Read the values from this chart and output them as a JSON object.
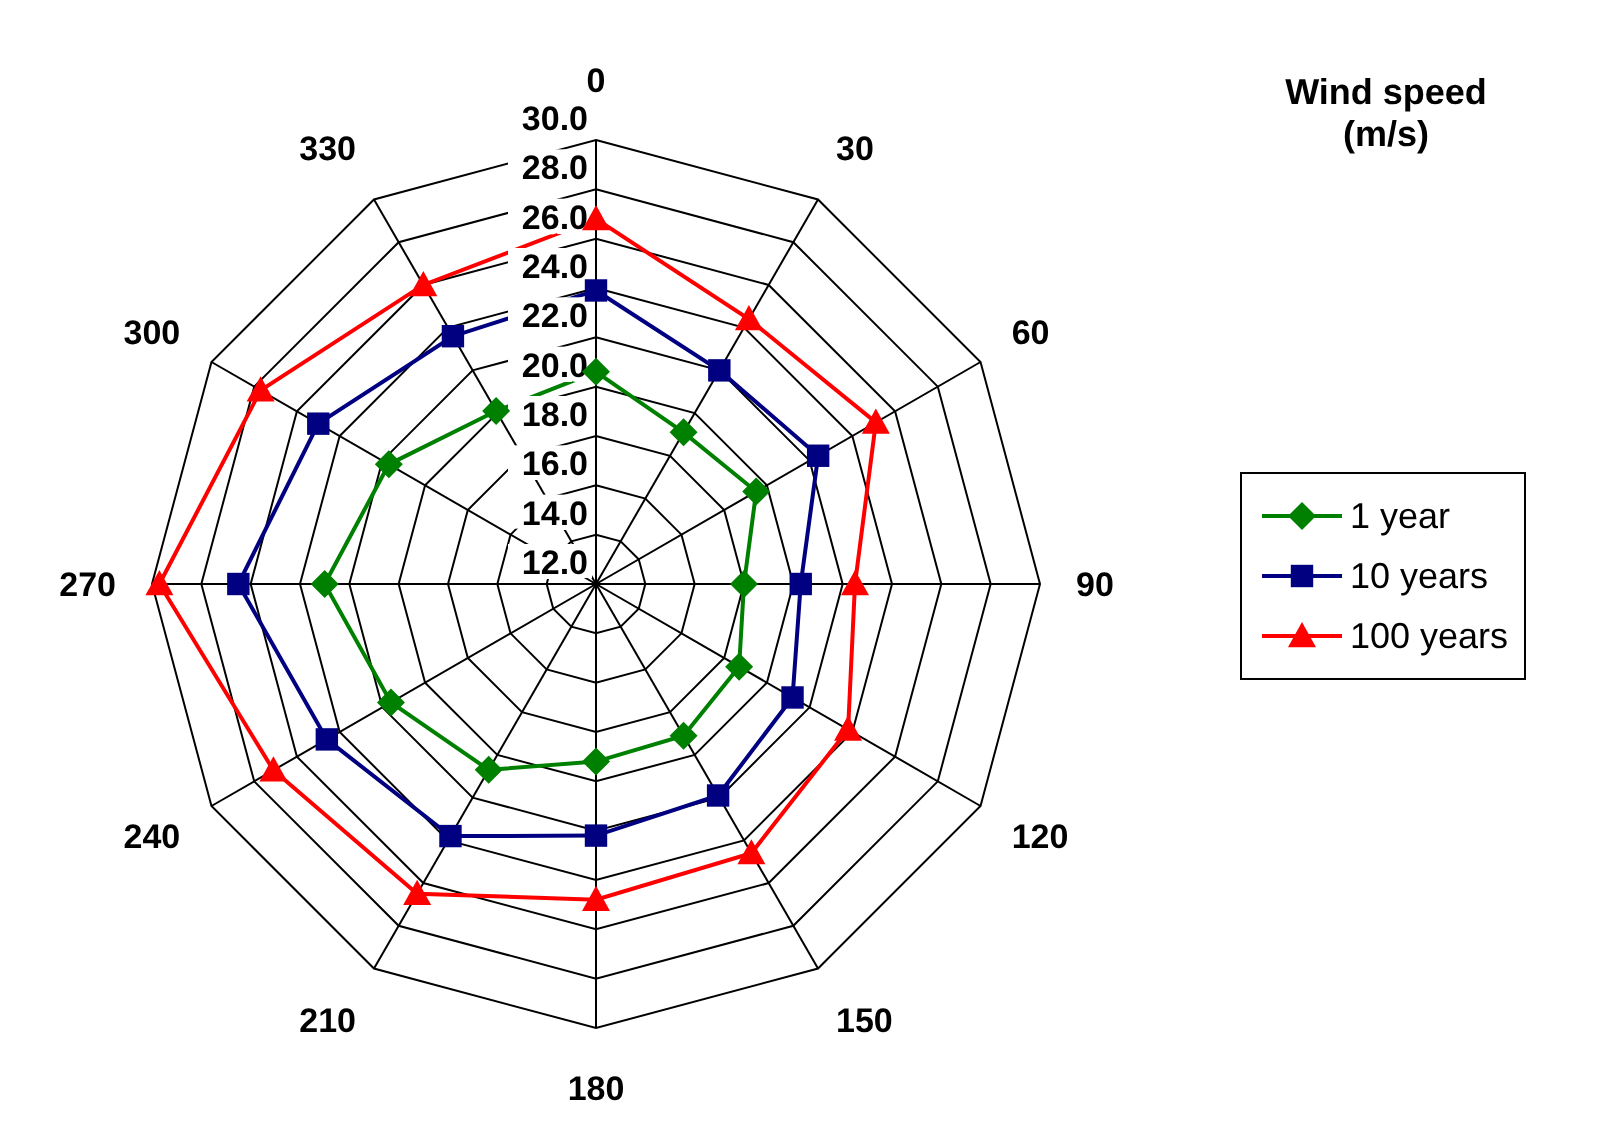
{
  "chart_data": {
    "type": "radar",
    "title": "Wind speed (m/s)",
    "categories": [
      "0",
      "30",
      "60",
      "90",
      "120",
      "150",
      "180",
      "210",
      "240",
      "270",
      "300",
      "330"
    ],
    "series": [
      {
        "name": "1 year",
        "color": "#008000",
        "marker": "diamond",
        "values": [
          20.6,
          19.1,
          19.5,
          18.0,
          18.7,
          19.1,
          19.2,
          20.7,
          21.6,
          23.0,
          21.7,
          20.1
        ]
      },
      {
        "name": "10 years",
        "color": "#000080",
        "marker": "square",
        "values": [
          23.9,
          22.0,
          22.4,
          20.3,
          21.2,
          21.9,
          22.2,
          23.8,
          24.6,
          26.5,
          25.0,
          23.6
        ]
      },
      {
        "name": "100 years",
        "color": "#ff0000",
        "marker": "triangle",
        "values": [
          26.8,
          24.4,
          25.1,
          22.5,
          23.8,
          24.6,
          24.8,
          26.5,
          27.1,
          29.7,
          27.7,
          26.0
        ]
      }
    ],
    "ylim": [
      12,
      30
    ],
    "yticks": [
      {
        "value": 12,
        "label": "12.0"
      },
      {
        "value": 14,
        "label": "14.0"
      },
      {
        "value": 16,
        "label": "16.0"
      },
      {
        "value": 18,
        "label": "18.0"
      },
      {
        "value": 20,
        "label": "20.0"
      },
      {
        "value": 22,
        "label": "22.0"
      },
      {
        "value": 24,
        "label": "24.0"
      },
      {
        "value": 26,
        "label": "26.0"
      },
      {
        "value": 28,
        "label": "28.0"
      },
      {
        "value": 30,
        "label": "30.0"
      }
    ],
    "grid": true,
    "legend": "right"
  }
}
